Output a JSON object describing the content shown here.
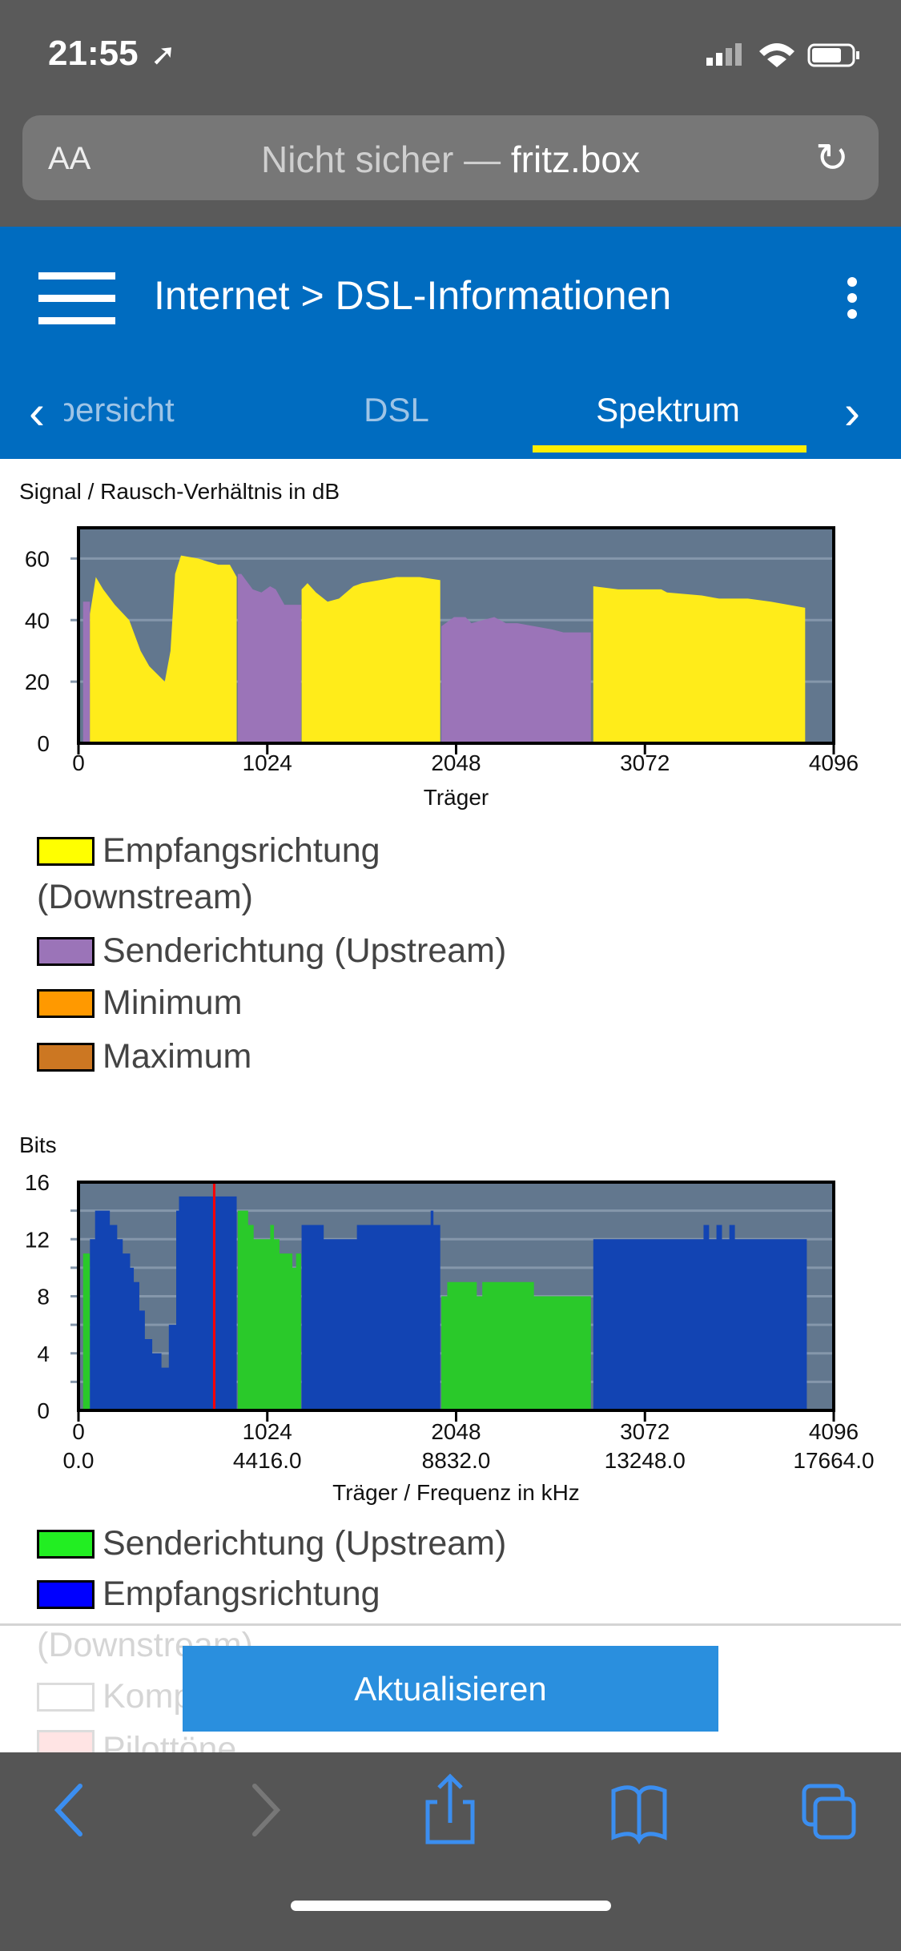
{
  "status": {
    "time": "21:55"
  },
  "browser": {
    "text_size": "AA",
    "url_prefix": "Nicht sicher — ",
    "url_host": "fritz.box"
  },
  "header": {
    "title": "Internet > DSL-Informationen",
    "tabs": [
      {
        "label": "Übersicht"
      },
      {
        "label": "DSL"
      },
      {
        "label": "Spektrum"
      }
    ],
    "active_tab": "Spektrum"
  },
  "snr": {
    "title": "Signal / Rausch-Verhältnis in dB",
    "legend": [
      "Empfangsrichtung",
      "(Downstream)",
      "Senderichtung (Upstream)",
      "Minimum",
      "Maximum"
    ]
  },
  "bits": {
    "title": "Bits",
    "legend": [
      "Senderichtung (Upstream)",
      "Empfangsrichtung",
      "(Downstream)",
      "Komp",
      "Pilottöne"
    ]
  },
  "button": {
    "label": "Aktualisieren"
  },
  "colors": {
    "header": "#006cc0",
    "downstream_snr": "#ffec1a",
    "upstream_snr": "#9b74b8",
    "minimum": "#ff9900",
    "maximum": "#cc7722",
    "upstream_bits": "#2ac92a",
    "downstream_bits": "#1244b3",
    "plot_bg": "#62778e",
    "pilot": "#ff0000"
  },
  "chart_data": [
    {
      "type": "area",
      "title": "Signal / Rausch-Verhältnis in dB",
      "xlabel": "Träger",
      "ylabel": "",
      "xlim": [
        0,
        4096
      ],
      "ylim": [
        0,
        70
      ],
      "xticks": [
        "0",
        "1024",
        "2048",
        "3072",
        "4096"
      ],
      "yticks": [
        "0",
        "20",
        "40",
        "60"
      ],
      "grid": true,
      "series": [
        {
          "name": "Senderichtung (Upstream)",
          "color": "#9b74b8",
          "segments": [
            [
              [
                25,
                46
              ],
              [
                62,
                46
              ]
            ],
            [
              [
                864,
                55
              ],
              [
                883,
                55
              ],
              [
                945,
                50
              ],
              [
                992,
                49
              ],
              [
                1039,
                51
              ],
              [
                1070,
                50
              ],
              [
                1117,
                45
              ],
              [
                1207,
                45
              ]
            ],
            [
              [
                1968,
                38
              ],
              [
                2037,
                41
              ],
              [
                2099,
                41
              ],
              [
                2131,
                39
              ],
              [
                2193,
                40
              ],
              [
                2255,
                41
              ],
              [
                2318,
                39
              ],
              [
                2380,
                39
              ],
              [
                2474,
                38
              ],
              [
                2568,
                37
              ],
              [
                2630,
                36
              ],
              [
                2779,
                36
              ]
            ]
          ]
        },
        {
          "name": "Empfangsrichtung (Downstream)",
          "color": "#ffec1a",
          "segments": [
            [
              [
                62,
                42
              ],
              [
                94,
                54
              ],
              [
                134,
                50
              ],
              [
                197,
                45
              ],
              [
                275,
                40
              ],
              [
                337,
                30
              ],
              [
                384,
                25
              ],
              [
                468,
                20
              ],
              [
                499,
                30
              ],
              [
                524,
                55
              ],
              [
                556,
                61
              ],
              [
                649,
                60
              ],
              [
                758,
                58
              ],
              [
                821,
                58
              ],
              [
                858,
                54
              ]
            ],
            [
              [
                1210,
                50
              ],
              [
                1242,
                52
              ],
              [
                1288,
                49
              ],
              [
                1351,
                46
              ],
              [
                1413,
                47
              ],
              [
                1491,
                51
              ],
              [
                1538,
                52
              ],
              [
                1632,
                53
              ],
              [
                1725,
                54
              ],
              [
                1850,
                54
              ],
              [
                1962,
                53
              ]
            ],
            [
              [
                2792,
                51
              ],
              [
                2927,
                50
              ],
              [
                3161,
                50
              ],
              [
                3192,
                49
              ],
              [
                3380,
                48
              ],
              [
                3474,
                47
              ],
              [
                3630,
                47
              ],
              [
                3755,
                46
              ],
              [
                3849,
                45
              ],
              [
                3941,
                44
              ]
            ]
          ]
        }
      ]
    },
    {
      "type": "area",
      "title": "Bits",
      "xlabel": "Träger / Frequenz in kHz",
      "ylabel": "",
      "xlim": [
        0,
        4096
      ],
      "ylim": [
        0,
        16
      ],
      "xticks": [
        "0",
        "1024",
        "2048",
        "3072",
        "4096"
      ],
      "xticks2": [
        "0.0",
        "4416.0",
        "8832.0",
        "13248.0",
        "17664.0"
      ],
      "yticks": [
        "0",
        "4",
        "8",
        "12",
        "16"
      ],
      "grid": true,
      "marker_carrier": 736,
      "series": [
        {
          "name": "Senderichtung (Upstream)",
          "color": "#2ac92a",
          "segments": [
            [
              [
                25,
                11
              ],
              [
                62,
                11
              ]
            ],
            [
              [
                864,
                14
              ],
              [
                900,
                14
              ],
              [
                920,
                13
              ],
              [
                950,
                12
              ],
              [
                1020,
                12
              ],
              [
                1040,
                13
              ],
              [
                1060,
                12
              ],
              [
                1090,
                11
              ],
              [
                1150,
                11
              ],
              [
                1160,
                10
              ],
              [
                1180,
                11
              ],
              [
                1207,
                10
              ]
            ],
            [
              [
                1968,
                8
              ],
              [
                2000,
                9
              ],
              [
                2140,
                9
              ],
              [
                2160,
                8
              ],
              [
                2190,
                9
              ],
              [
                2460,
                9
              ],
              [
                2470,
                8
              ],
              [
                2779,
                8
              ]
            ]
          ]
        },
        {
          "name": "Empfangsrichtung (Downstream)",
          "color": "#1244b3",
          "segments": [
            [
              [
                62,
                12
              ],
              [
                90,
                14
              ],
              [
                130,
                14
              ],
              [
                170,
                13
              ],
              [
                210,
                12
              ],
              [
                240,
                11
              ],
              [
                280,
                10
              ],
              [
                300,
                9
              ],
              [
                330,
                7
              ],
              [
                360,
                5
              ],
              [
                400,
                4
              ],
              [
                450,
                3
              ],
              [
                490,
                6
              ],
              [
                530,
                14
              ],
              [
                545,
                15
              ],
              [
                830,
                15
              ],
              [
                858,
                14
              ]
            ],
            [
              [
                1210,
                13
              ],
              [
                1320,
                13
              ],
              [
                1330,
                12
              ],
              [
                1500,
                12
              ],
              [
                1510,
                13
              ],
              [
                1900,
                13
              ],
              [
                1910,
                14
              ],
              [
                1925,
                13
              ],
              [
                1962,
                13
              ]
            ],
            [
              [
                2792,
                12
              ],
              [
                3380,
                12
              ],
              [
                3390,
                13
              ],
              [
                3420,
                12
              ],
              [
                3460,
                13
              ],
              [
                3490,
                12
              ],
              [
                3530,
                13
              ],
              [
                3560,
                12
              ],
              [
                3950,
                11
              ]
            ]
          ]
        }
      ]
    }
  ]
}
